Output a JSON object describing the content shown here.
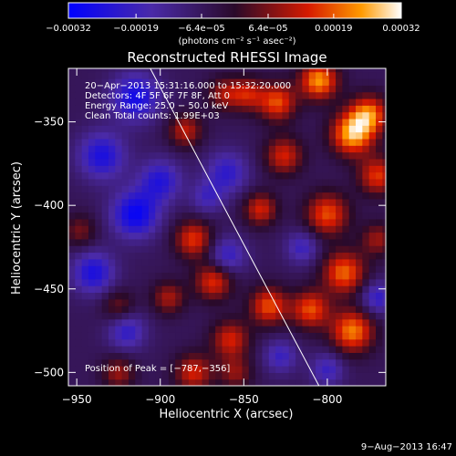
{
  "chart_data": {
    "type": "heatmap",
    "title": "Reconstructed RHESSI Image",
    "xlabel": "Heliocentric X (arcsec)",
    "ylabel": "Heliocentric Y (arcsec)",
    "xlim": [
      -955,
      -765
    ],
    "ylim": [
      -508,
      -318
    ],
    "x_ticks": [
      -950,
      -900,
      -850,
      -800
    ],
    "y_ticks": [
      -350,
      -400,
      -450,
      -500
    ],
    "x_tick_labels": [
      "−950",
      "−900",
      "−850",
      "−800"
    ],
    "y_tick_labels": [
      "−350",
      "−400",
      "−450",
      "−500"
    ],
    "colorbar": {
      "min": -0.00032,
      "max": 0.00032,
      "ticks": [
        -0.00032,
        -0.00019,
        -6.4e-05,
        6.4e-05,
        0.00019,
        0.00032
      ],
      "tick_labels": [
        "−0.00032",
        "−0.00019",
        "−6.4e−05",
        "6.4e−05",
        "0.00019",
        "0.00032"
      ],
      "unit_label": "(photons cm⁻² s⁻¹ asec⁻²)"
    },
    "annotations": [
      "20−Apr−2013 15:31:16.000 to 15:32:20.000",
      "Detectors: 4F 5F 6F 7F 8F, Att 0",
      "Energy Range: 25.0 − 50.0 keV",
      "Clean    Total counts: 1.99E+03"
    ],
    "peak_label": "Position of Peak = [−787,−356]",
    "peak": [
      -787,
      -356
    ],
    "limb_line": [
      [
        -906,
        -318
      ],
      [
        -805,
        -508
      ]
    ],
    "blobs": [
      [
        -785,
        -357,
        0.00032,
        9
      ],
      [
        -775,
        -345,
        0.00026,
        8
      ],
      [
        -805,
        -325,
        0.0003,
        8
      ],
      [
        -830,
        -338,
        0.00024,
        8
      ],
      [
        -826,
        -370,
        0.0002,
        8
      ],
      [
        -848,
        -333,
        0.00018,
        7
      ],
      [
        -885,
        -355,
        0.00018,
        7
      ],
      [
        -862,
        -333,
        0.00015,
        7
      ],
      [
        -770,
        -382,
        0.00022,
        8
      ],
      [
        -800,
        -405,
        0.00024,
        9
      ],
      [
        -790,
        -440,
        0.00026,
        9
      ],
      [
        -810,
        -462,
        0.00024,
        8
      ],
      [
        -785,
        -475,
        0.00028,
        9
      ],
      [
        -835,
        -460,
        0.00024,
        8
      ],
      [
        -858,
        -480,
        0.0002,
        8
      ],
      [
        -868,
        -445,
        0.00022,
        8
      ],
      [
        -840,
        -402,
        0.0002,
        7
      ],
      [
        -880,
        -420,
        0.00022,
        8
      ],
      [
        -895,
        -455,
        0.00016,
        7
      ],
      [
        -880,
        -500,
        0.0002,
        8
      ],
      [
        -925,
        -500,
        0.00015,
        7
      ],
      [
        -948,
        -415,
        0.00012,
        7
      ],
      [
        -925,
        -460,
        0.00012,
        7
      ],
      [
        -770,
        -420,
        0.00015,
        7
      ],
      [
        -855,
        -500,
        0.00014,
        7
      ],
      [
        -915,
        -335,
        -0.00022,
        10
      ],
      [
        -935,
        -370,
        -0.0002,
        10
      ],
      [
        -915,
        -405,
        -0.00024,
        10
      ],
      [
        -900,
        -385,
        -0.00018,
        9
      ],
      [
        -860,
        -380,
        -0.00016,
        9
      ],
      [
        -940,
        -440,
        -0.0002,
        9
      ],
      [
        -920,
        -475,
        -0.00016,
        8
      ],
      [
        -860,
        -430,
        -0.00016,
        8
      ],
      [
        -770,
        -455,
        -0.00016,
        7
      ],
      [
        -815,
        -425,
        -0.00014,
        7
      ],
      [
        -800,
        -498,
        -0.00014,
        7
      ],
      [
        -828,
        -490,
        -0.00014,
        7
      ],
      [
        -872,
        -395,
        -0.00012,
        7
      ]
    ]
  },
  "footer": {
    "date": "9−Aug−2013 16:47"
  }
}
